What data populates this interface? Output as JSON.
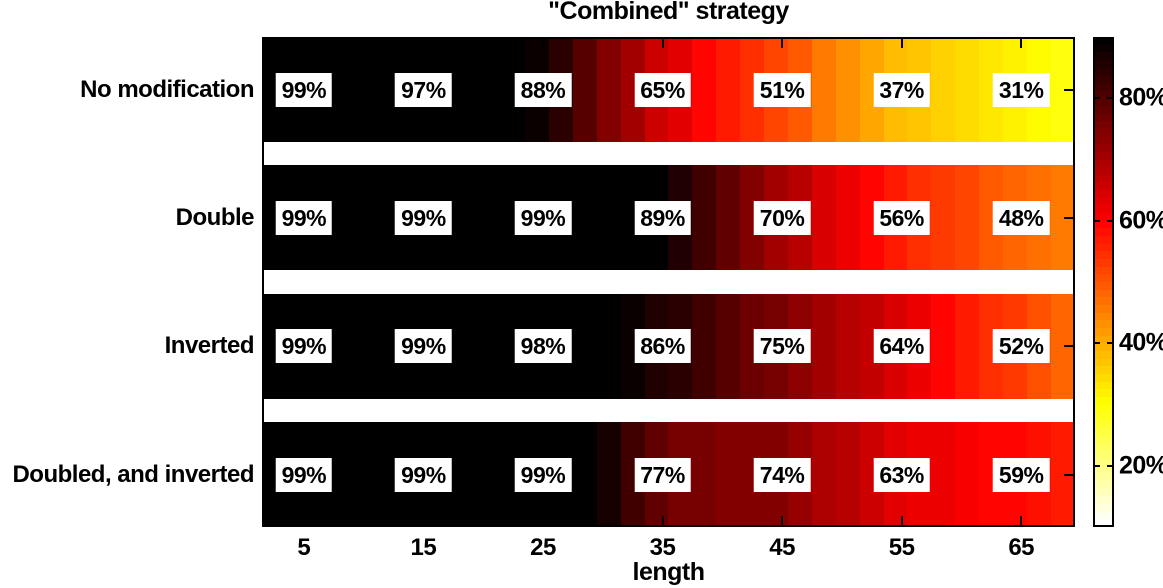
{
  "figure": {
    "title": "\"Combined\" strategy",
    "xlabel": "length"
  },
  "chart_data": {
    "type": "heatmap",
    "title": "\"Combined\" strategy",
    "xlabel": "length",
    "x_ticks": [
      5,
      15,
      25,
      35,
      45,
      55,
      65
    ],
    "x_domain": [
      1.5,
      69.5
    ],
    "cell_step": 2,
    "rows": [
      {
        "label": "No modification",
        "values_pct": [
          99,
          97,
          88,
          65,
          51,
          37,
          31
        ]
      },
      {
        "label": "Double",
        "values_pct": [
          99,
          99,
          99,
          89,
          70,
          56,
          48
        ]
      },
      {
        "label": "Inverted",
        "values_pct": [
          99,
          99,
          98,
          86,
          75,
          64,
          52
        ]
      },
      {
        "label": "Doubled, and inverted",
        "values_pct": [
          99,
          99,
          99,
          77,
          74,
          63,
          59
        ]
      }
    ],
    "cell_label_suffix": "%",
    "colormap": "hot-reversed",
    "colormap_levels": 64,
    "color_axis": {
      "min_pct": 10,
      "max_pct": 90
    },
    "colorbar_ticks": [
      {
        "value": 80,
        "label": "80%"
      },
      {
        "value": 60,
        "label": "60%"
      },
      {
        "value": 40,
        "label": "40%"
      },
      {
        "value": 20,
        "label": "20%"
      }
    ],
    "legend_position": "right-colorbar",
    "grid": false,
    "background_color": "#ffffff"
  }
}
